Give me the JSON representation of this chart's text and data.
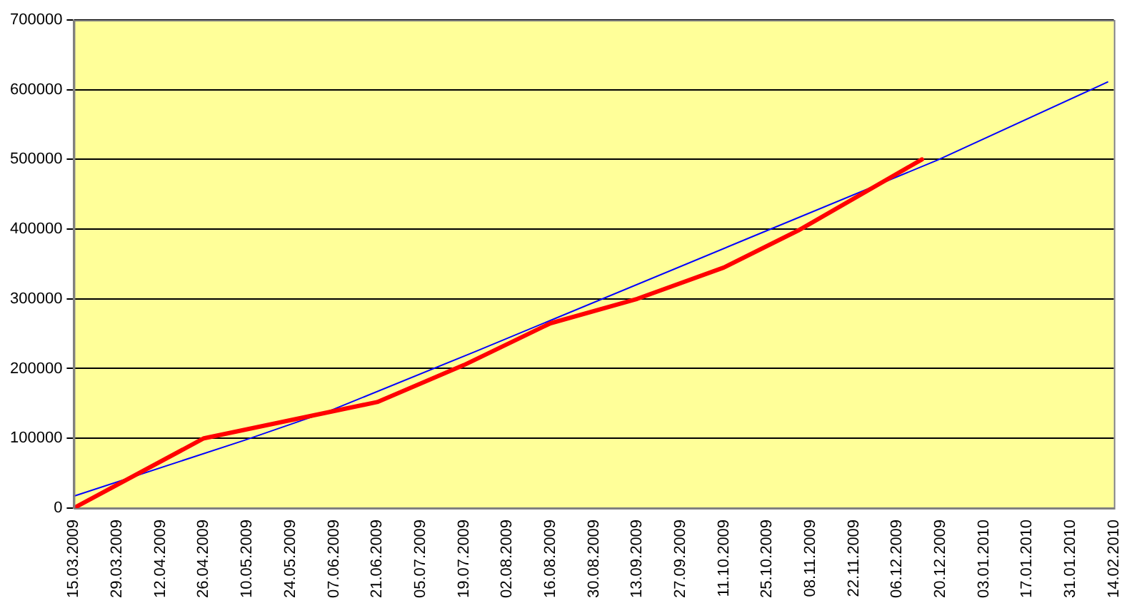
{
  "chart_data": {
    "type": "line",
    "xlim": [
      "2009-03-15",
      "2010-02-14"
    ],
    "xticks": [
      {
        "value": "2009-03-15",
        "label": "15.03.2009"
      },
      {
        "value": "2009-03-29",
        "label": "29.03.2009"
      },
      {
        "value": "2009-04-12",
        "label": "12.04.2009"
      },
      {
        "value": "2009-04-26",
        "label": "26.04.2009"
      },
      {
        "value": "2009-05-10",
        "label": "10.05.2009"
      },
      {
        "value": "2009-05-24",
        "label": "24.05.2009"
      },
      {
        "value": "2009-06-07",
        "label": "07.06.2009"
      },
      {
        "value": "2009-06-21",
        "label": "21.06.2009"
      },
      {
        "value": "2009-07-05",
        "label": "05.07.2009"
      },
      {
        "value": "2009-07-19",
        "label": "19.07.2009"
      },
      {
        "value": "2009-08-02",
        "label": "02.08.2009"
      },
      {
        "value": "2009-08-16",
        "label": "16.08.2009"
      },
      {
        "value": "2009-08-30",
        "label": "30.08.2009"
      },
      {
        "value": "2009-09-13",
        "label": "13.09.2009"
      },
      {
        "value": "2009-09-27",
        "label": "27.09.2009"
      },
      {
        "value": "2009-10-11",
        "label": "11.10.2009"
      },
      {
        "value": "2009-10-25",
        "label": "25.10.2009"
      },
      {
        "value": "2009-11-08",
        "label": "08.11.2009"
      },
      {
        "value": "2009-11-22",
        "label": "22.11.2009"
      },
      {
        "value": "2009-12-06",
        "label": "06.12.2009"
      },
      {
        "value": "2009-12-20",
        "label": "20.12.2009"
      },
      {
        "value": "2010-01-03",
        "label": "03.01.2010"
      },
      {
        "value": "2010-01-17",
        "label": "17.01.2010"
      },
      {
        "value": "2010-01-31",
        "label": "31.01.2010"
      },
      {
        "value": "2010-02-14",
        "label": "14.02.2010"
      }
    ],
    "ylim": [
      0,
      700000
    ],
    "yticks": [
      0,
      100000,
      200000,
      300000,
      400000,
      500000,
      600000,
      700000
    ],
    "grid": "y",
    "legend": false,
    "marker": "none",
    "line_style": "solid",
    "series": [
      {
        "type": "line",
        "color": "#ff0000",
        "x": [
          "2009-03-15",
          "2009-04-26",
          "2009-06-21",
          "2009-07-19",
          "2009-08-16",
          "2009-09-13",
          "2009-10-11",
          "2009-11-04",
          "2009-12-14"
        ],
        "values": [
          0,
          100000,
          152000,
          205000,
          265000,
          300000,
          345000,
          398000,
          500000
        ]
      },
      {
        "type": "line",
        "color": "#0000ff",
        "x": [
          "2009-03-15",
          "2009-05-09",
          "2009-06-06",
          "2009-07-23",
          "2009-10-19",
          "2009-12-19",
          "2010-02-12"
        ],
        "values": [
          17000,
          97000,
          140000,
          225000,
          387000,
          499000,
          611000
        ]
      }
    ]
  }
}
